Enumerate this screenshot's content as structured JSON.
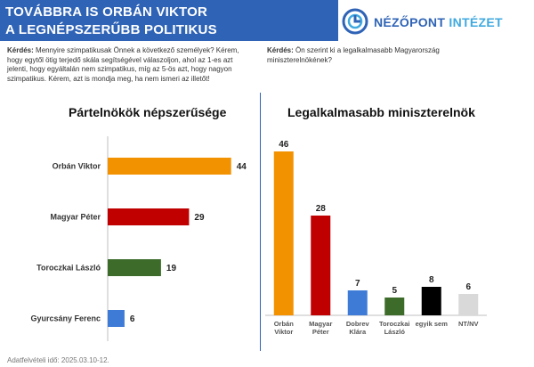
{
  "header": {
    "line1": "TOVÁBBRA IS ORBÁN VIKTOR",
    "line2": "A LEGNÉPSZERŰBB POLITIKUS"
  },
  "logo": {
    "name_part1": "NÉZŐPONT",
    "name_part2": "INTÉZET",
    "icon": "nezopont-logo-icon",
    "brand_color": "#2f63b6"
  },
  "questions": {
    "label": "Kérdés:",
    "left": "Mennyire szimpatikusak Önnek a következő személyek? Kérem, hogy egytől ötig terjedő skála segítségével válaszoljon, ahol az 1-es azt jelenti, hogy egyáltalán nem szimpatikus, míg az 5-ös azt, hogy nagyon szimpatikus. Kérem, azt is mondja meg, ha nem ismeri az illetőt!",
    "right": "Ön szerint ki a legalkalmasabb Magyarország miniszterelnökének?"
  },
  "footer": "Adatfelvételi idő: 2025.03.10-12.",
  "chart_data": [
    {
      "type": "bar",
      "orientation": "horizontal",
      "title": "Pártelnökök népszerűsége",
      "categories": [
        "Orbán Viktor",
        "Magyar Péter",
        "Toroczkai László",
        "Gyurcsány Ferenc"
      ],
      "values": [
        44,
        29,
        19,
        6
      ],
      "colors": [
        "#f39200",
        "#c00000",
        "#3d6b2a",
        "#3e7bd6"
      ],
      "data_labels": true
    },
    {
      "type": "bar",
      "orientation": "vertical",
      "title": "Legalkalmasabb miniszterelnök",
      "categories": [
        "Orbán Viktor",
        "Magyar Péter",
        "Dobrev Klára",
        "Toroczkai László",
        "egyik sem",
        "NT/NV"
      ],
      "values": [
        46,
        28,
        7,
        5,
        8,
        6
      ],
      "colors": [
        "#f39200",
        "#c00000",
        "#3e7bd6",
        "#3d6b2a",
        "#000000",
        "#d9d9d9"
      ],
      "data_labels": true
    }
  ]
}
